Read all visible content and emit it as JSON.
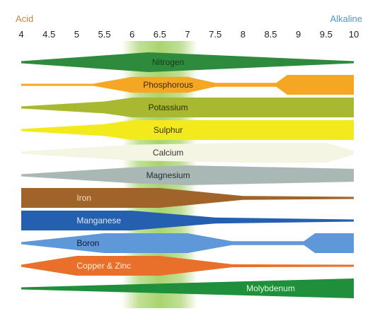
{
  "chart_data": {
    "type": "area",
    "title": "",
    "xlabel": "",
    "ylabel": "",
    "end_labels": {
      "left": "Acid",
      "right": "Alkaline"
    },
    "colors": {
      "acid": "#c8864a",
      "alkaline": "#4a9ad0",
      "optimal_band": "#8dc63f"
    },
    "optimal_range": [
      6,
      7
    ],
    "xlim": [
      4,
      10
    ],
    "ticks": [
      "4",
      "4.5",
      "5",
      "5.5",
      "6",
      "6.5",
      "7",
      "7.5",
      "8",
      "8.5",
      "9",
      "9.5",
      "10"
    ],
    "series": [
      {
        "name": "Nitrogen",
        "color": "#2e8b3e",
        "text_color": "#1a3a1a",
        "profile": [
          [
            4,
            0.05
          ],
          [
            6.3,
            1
          ],
          [
            10,
            0.05
          ]
        ]
      },
      {
        "name": "Phosphorous",
        "color": "#f5a623",
        "text_color": "#3a2a00",
        "profile": [
          [
            4,
            0.05
          ],
          [
            5.3,
            0.1
          ],
          [
            6,
            0.8
          ],
          [
            7,
            0.8
          ],
          [
            7.5,
            0.2
          ],
          [
            8.6,
            0.2
          ],
          [
            8.8,
            1
          ],
          [
            10,
            1
          ]
        ]
      },
      {
        "name": "Potassium",
        "color": "#a8b830",
        "text_color": "#2a3000",
        "profile": [
          [
            4,
            0.05
          ],
          [
            5.5,
            0.6
          ],
          [
            6,
            1
          ],
          [
            10,
            1
          ]
        ]
      },
      {
        "name": "Sulphur",
        "color": "#f2ea1c",
        "text_color": "#3a3400",
        "profile": [
          [
            4,
            0.05
          ],
          [
            5.5,
            0.6
          ],
          [
            6,
            1
          ],
          [
            10,
            1
          ]
        ]
      },
      {
        "name": "Calcium",
        "color": "#f4f5e2",
        "text_color": "#333333",
        "profile": [
          [
            4,
            0.05
          ],
          [
            6,
            0.8
          ],
          [
            8,
            1
          ],
          [
            9.5,
            1
          ],
          [
            10,
            0.2
          ]
        ]
      },
      {
        "name": "Magnesium",
        "color": "#a9b7b5",
        "text_color": "#1f2f2f",
        "profile": [
          [
            4,
            0.05
          ],
          [
            6,
            0.8
          ],
          [
            7,
            1
          ],
          [
            10,
            0.65
          ]
        ]
      },
      {
        "name": "Iron",
        "color": "#a0642a",
        "text_color": "#f0e0c8",
        "profile": [
          [
            4,
            1
          ],
          [
            6.5,
            1
          ],
          [
            8,
            0.2
          ],
          [
            10,
            0.1
          ]
        ]
      },
      {
        "name": "Manganese",
        "color": "#2560b0",
        "text_color": "#dde8ff",
        "profile": [
          [
            4,
            1
          ],
          [
            6,
            1
          ],
          [
            7.5,
            0.3
          ],
          [
            10,
            0.08
          ]
        ]
      },
      {
        "name": "Boron",
        "color": "#5e98d8",
        "text_color": "#0a1a30",
        "profile": [
          [
            4,
            0.05
          ],
          [
            5.5,
            1
          ],
          [
            7,
            1
          ],
          [
            7.8,
            0.2
          ],
          [
            9.1,
            0.2
          ],
          [
            9.3,
            1
          ],
          [
            10,
            1
          ]
        ]
      },
      {
        "name": "Copper & Zinc",
        "color": "#e8702a",
        "text_color": "#fff0e0",
        "profile": [
          [
            4,
            0.05
          ],
          [
            5,
            1
          ],
          [
            6.5,
            1
          ],
          [
            7.8,
            0.15
          ],
          [
            10,
            0.1
          ]
        ]
      },
      {
        "name": "Molybdenum",
        "color": "#1f8f3c",
        "text_color": "#e0ffe0",
        "profile": [
          [
            4,
            0.05
          ],
          [
            10,
            1
          ]
        ]
      }
    ]
  }
}
